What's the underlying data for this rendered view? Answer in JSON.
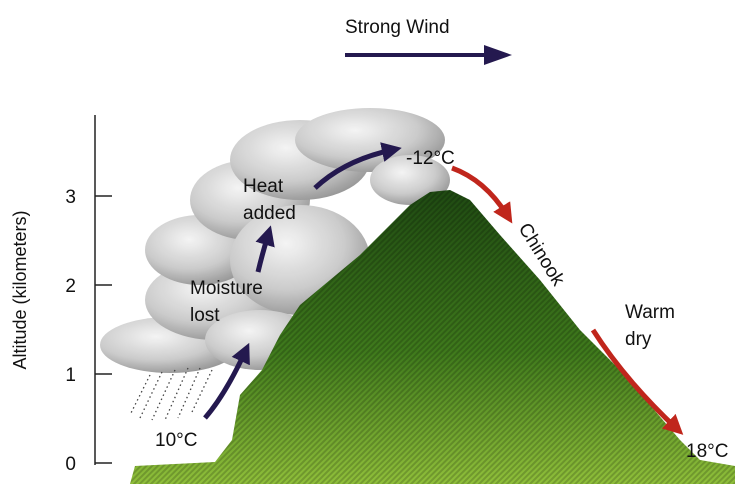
{
  "title": "Strong Wind",
  "axis": {
    "label": "Altitude (kilometers)",
    "ticks": [
      0,
      1,
      2,
      3
    ]
  },
  "labels": {
    "heat_added": [
      "Heat",
      "added"
    ],
    "moisture_lost": [
      "Moisture",
      "lost"
    ],
    "summit_temp": "-12°C",
    "chinook": "Chinook",
    "warm_dry": [
      "Warm",
      "dry"
    ],
    "start_temp": "10°C",
    "end_temp": "18°C"
  }
}
